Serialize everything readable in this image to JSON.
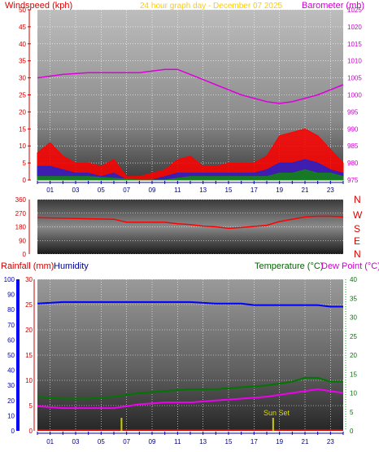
{
  "header": {
    "left_label": "Windspeed (kph)",
    "center_label": "24 hour graph day - December 07 2025",
    "right_label": "Barometer (mb)"
  },
  "wind_direction_panel": {
    "compass_letters": [
      "N",
      "W",
      "S",
      "E",
      "N"
    ]
  },
  "lower_panel": {
    "rain_label": "Rainfall (mm)",
    "humidity_label": "Humidity",
    "temp_label": "Temperature (°C)",
    "dew_label": "Dew Point (°C)",
    "sunset_label": "Sun Set",
    "sunset_marker": "Sun"
  },
  "colors": {
    "wind": "#ff0000",
    "gust": "#ff0000",
    "barometer": "#dd00dd",
    "humidity": "#0000ff",
    "temperature": "#007700",
    "dewpoint": "#ee00ee",
    "rainfall": "#dd0000",
    "header_title": "#ffcc00",
    "sun": "#cccc00"
  },
  "chart_data": [
    {
      "type": "line",
      "title": "24 hour graph day - December 07 2025",
      "xlabel": "",
      "x_ticks": [
        "01",
        "03",
        "05",
        "07",
        "09",
        "11",
        "13",
        "15",
        "17",
        "19",
        "21",
        "23"
      ],
      "xlim": [
        0,
        24
      ],
      "left_axis": {
        "label": "Windspeed (kph)",
        "ylim": [
          0,
          50
        ],
        "ticks": [
          0,
          5,
          10,
          15,
          20,
          25,
          30,
          35,
          40,
          45,
          50
        ]
      },
      "right_axis": {
        "label": "Barometer (mb)",
        "ylim": [
          975,
          1025
        ],
        "ticks": [
          975,
          980,
          985,
          990,
          995,
          1000,
          1005,
          1010,
          1015,
          1020,
          1025
        ]
      },
      "series": [
        {
          "name": "Barometer (mb)",
          "axis": "right",
          "x": [
            0,
            2,
            4,
            6,
            8,
            10,
            11,
            12,
            14,
            16,
            18,
            19,
            20,
            22,
            24
          ],
          "y": [
            1005,
            1006,
            1006.5,
            1006.5,
            1006.5,
            1007.5,
            1007.5,
            1006,
            1003,
            1000,
            998,
            997.5,
            998,
            1000,
            1003
          ]
        },
        {
          "name": "Wind gust",
          "axis": "left",
          "x": [
            0,
            1,
            2,
            3,
            4,
            5,
            6,
            7,
            8,
            9,
            10,
            11,
            12,
            13,
            14,
            15,
            16,
            17,
            18,
            19,
            20,
            21,
            22,
            23,
            24
          ],
          "y": [
            8,
            11,
            7,
            5,
            5,
            4,
            6,
            1,
            1,
            2,
            3,
            6,
            7,
            4,
            4,
            5,
            5,
            5,
            7,
            13,
            14,
            15,
            13,
            9,
            5
          ]
        },
        {
          "name": "Wind speed",
          "axis": "left",
          "x": [
            0,
            1,
            2,
            3,
            4,
            5,
            6,
            7,
            8,
            9,
            10,
            11,
            12,
            13,
            14,
            15,
            16,
            17,
            18,
            19,
            20,
            21,
            22,
            23,
            24
          ],
          "y": [
            4,
            4,
            3,
            2,
            2,
            1,
            2,
            0,
            0,
            0,
            1,
            2,
            2,
            2,
            2,
            2,
            2,
            2,
            3,
            5,
            5,
            6,
            5,
            3,
            2
          ]
        },
        {
          "name": "Wind average",
          "axis": "left",
          "x": [
            0,
            2,
            4,
            6,
            8,
            10,
            12,
            14,
            16,
            18,
            19,
            20,
            21,
            22,
            23,
            24
          ],
          "y": [
            1,
            1,
            1,
            0.5,
            0,
            0,
            1,
            1,
            1,
            1,
            2,
            2,
            3,
            2,
            2,
            1
          ]
        }
      ]
    },
    {
      "type": "line",
      "title": "",
      "left_axis": {
        "label": "",
        "ylim": [
          0,
          360
        ],
        "ticks": [
          0,
          90,
          180,
          270,
          360
        ]
      },
      "right_labels": [
        "N",
        "W",
        "S",
        "E",
        "N"
      ],
      "xlim": [
        0,
        24
      ],
      "series": [
        {
          "name": "Wind direction",
          "x": [
            0,
            3,
            6,
            7,
            8,
            10,
            11,
            12,
            13,
            14,
            15,
            16,
            18,
            19,
            20,
            21,
            22,
            23,
            24
          ],
          "y": [
            240,
            235,
            230,
            210,
            210,
            210,
            200,
            195,
            185,
            180,
            170,
            175,
            190,
            215,
            230,
            245,
            250,
            250,
            245
          ]
        }
      ]
    },
    {
      "type": "line",
      "title": "",
      "x_ticks": [
        "01",
        "03",
        "05",
        "07",
        "09",
        "11",
        "13",
        "15",
        "17",
        "19",
        "21",
        "23"
      ],
      "xlim": [
        0,
        24
      ],
      "humidity_axis": {
        "ylim": [
          0,
          100
        ],
        "ticks": [
          0,
          10,
          20,
          30,
          40,
          50,
          60,
          70,
          80,
          90,
          100
        ]
      },
      "rainfall_axis": {
        "label": "Rainfall (mm)",
        "ylim": [
          0,
          30
        ],
        "ticks": [
          0,
          5,
          10,
          15,
          20,
          25,
          30
        ]
      },
      "temperature_axis": {
        "label": "Temperature (°C)",
        "ylim": [
          0,
          40
        ],
        "ticks": [
          0,
          5,
          10,
          15,
          20,
          25,
          30,
          35,
          40
        ]
      },
      "series": [
        {
          "name": "Humidity",
          "axis": "humidity",
          "x": [
            0,
            2,
            4,
            6,
            8,
            10,
            12,
            14,
            16,
            17,
            18,
            20,
            22,
            23,
            24
          ],
          "y": [
            84,
            85,
            85,
            85,
            85,
            85,
            85,
            84,
            84,
            83,
            83,
            83,
            83,
            82,
            82
          ]
        },
        {
          "name": "Temperature (°C)",
          "axis": "temperature",
          "x": [
            0,
            2,
            4,
            6,
            8,
            10,
            12,
            14,
            16,
            18,
            20,
            21,
            22,
            23,
            24
          ],
          "y": [
            9,
            8.5,
            8.5,
            9,
            10,
            10.5,
            11,
            11,
            11.5,
            12,
            13,
            14,
            14,
            13,
            13
          ]
        },
        {
          "name": "Dew Point (°C)",
          "axis": "temperature",
          "x": [
            0,
            2,
            4,
            6,
            7,
            8,
            10,
            12,
            14,
            16,
            18,
            19,
            20,
            21,
            22,
            23,
            24
          ],
          "y": [
            6.5,
            6,
            6,
            6,
            6.5,
            7,
            7.5,
            7.5,
            8,
            8.5,
            9,
            9.5,
            10,
            10.5,
            11,
            10.5,
            10
          ]
        },
        {
          "name": "Rainfall (mm)",
          "axis": "rainfall",
          "x": [
            0,
            24
          ],
          "y": [
            0,
            0
          ]
        }
      ],
      "markers": [
        {
          "x": 6.6,
          "label": ""
        },
        {
          "x": 18.5,
          "label": "Sun Set"
        }
      ]
    }
  ]
}
